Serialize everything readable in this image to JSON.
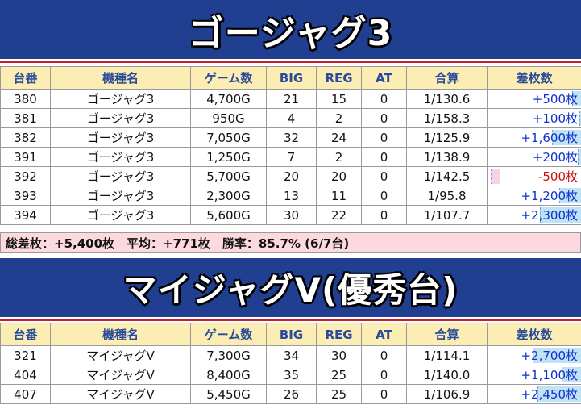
{
  "section1": {
    "title": "ゴージャグ3",
    "headers": [
      "台番",
      "機種名",
      "ゲーム数",
      "BIG",
      "REG",
      "AT",
      "合算",
      "差枚数"
    ],
    "rows": [
      {
        "no": "380",
        "model": "ゴージャグ3",
        "games": "4,700G",
        "big": "21",
        "reg": "15",
        "at": "0",
        "rate": "1/130.6",
        "diff": "+500枚",
        "diff_value": 500
      },
      {
        "no": "381",
        "model": "ゴージャグ3",
        "games": "950G",
        "big": "4",
        "reg": "2",
        "at": "0",
        "rate": "1/158.3",
        "diff": "+100枚",
        "diff_value": 100
      },
      {
        "no": "382",
        "model": "ゴージャグ3",
        "games": "7,050G",
        "big": "32",
        "reg": "24",
        "at": "0",
        "rate": "1/125.9",
        "diff": "+1,600枚",
        "diff_value": 1600
      },
      {
        "no": "391",
        "model": "ゴージャグ3",
        "games": "1,250G",
        "big": "7",
        "reg": "2",
        "at": "0",
        "rate": "1/138.9",
        "diff": "+200枚",
        "diff_value": 200
      },
      {
        "no": "392",
        "model": "ゴージャグ3",
        "games": "5,700G",
        "big": "20",
        "reg": "20",
        "at": "0",
        "rate": "1/142.5",
        "diff": "-500枚",
        "diff_value": -500
      },
      {
        "no": "393",
        "model": "ゴージャグ3",
        "games": "2,300G",
        "big": "13",
        "reg": "11",
        "at": "0",
        "rate": "1/95.8",
        "diff": "+1,200枚",
        "diff_value": 1200
      },
      {
        "no": "394",
        "model": "ゴージャグ3",
        "games": "5,600G",
        "big": "30",
        "reg": "22",
        "at": "0",
        "rate": "1/107.7",
        "diff": "+2,300枚",
        "diff_value": 2300
      }
    ],
    "summary": "総差枚：+5,400枚　平均：+771枚　勝率：85.7% (6/7台)"
  },
  "section2": {
    "title": "マイジャグV(優秀台)",
    "headers": [
      "台番",
      "機種名",
      "ゲーム数",
      "BIG",
      "REG",
      "AT",
      "合算",
      "差枚数"
    ],
    "rows": [
      {
        "no": "321",
        "model": "マイジャグV",
        "games": "7,300G",
        "big": "34",
        "reg": "30",
        "at": "0",
        "rate": "1/114.1",
        "diff": "+2,700枚",
        "diff_value": 2700
      },
      {
        "no": "404",
        "model": "マイジャグV",
        "games": "8,400G",
        "big": "35",
        "reg": "25",
        "at": "0",
        "rate": "1/140.0",
        "diff": "+1,100枚",
        "diff_value": 1100
      },
      {
        "no": "407",
        "model": "マイジャグV",
        "games": "5,450G",
        "big": "26",
        "reg": "25",
        "at": "0",
        "rate": "1/106.9",
        "diff": "+2,450枚",
        "diff_value": 2450
      }
    ]
  },
  "colors": {
    "banner": "#203f90",
    "header_bg": "#fbedb4",
    "header_text": "#2a4a9a",
    "positive": "#1030d0",
    "negative": "#d01010",
    "summary_bg": "#fcd9df"
  }
}
